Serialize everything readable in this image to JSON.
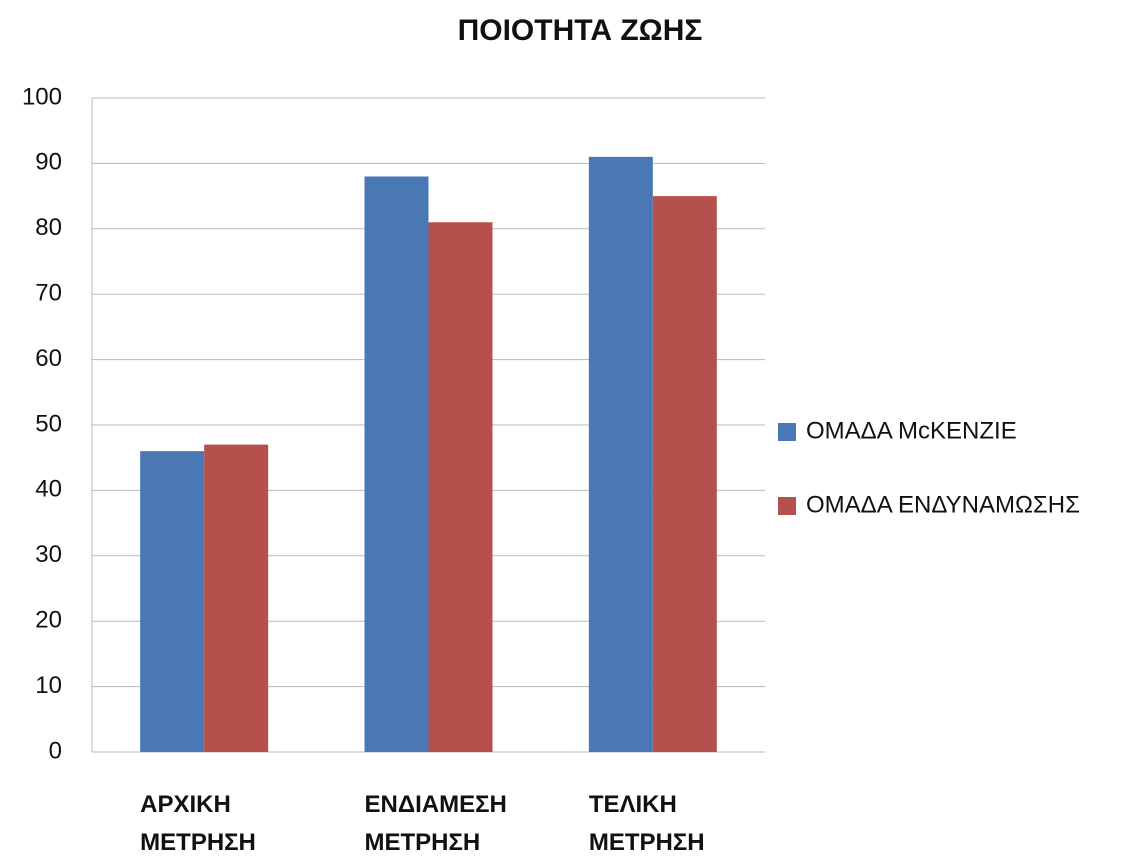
{
  "chart_data": {
    "type": "bar",
    "title": "ΠΟΙΟΤΗΤΑ ΖΩΗΣ",
    "categories": [
      "ΑΡΧΙΚΗ ΜΕΤΡΗΣΗ",
      "ΕΝΔΙΑΜΕΣΗ ΜΕΤΡΗΣΗ",
      "ΤΕΛΙΚΗ ΜΕΤΡΗΣΗ"
    ],
    "series": [
      {
        "name": "ΟΜΑΔΑ McKENZIE",
        "color": "#4a78b5",
        "values": [
          46,
          88,
          91
        ]
      },
      {
        "name": "ΟΜΑΔΑ ΕΝΔΥΝΑΜΩΣΗΣ",
        "color": "#b5504c",
        "values": [
          47,
          81,
          85
        ]
      }
    ],
    "ylim": [
      0,
      100
    ],
    "yticks": [
      0,
      10,
      20,
      30,
      40,
      50,
      60,
      70,
      80,
      90,
      100
    ],
    "grid": true,
    "legend": "right"
  }
}
